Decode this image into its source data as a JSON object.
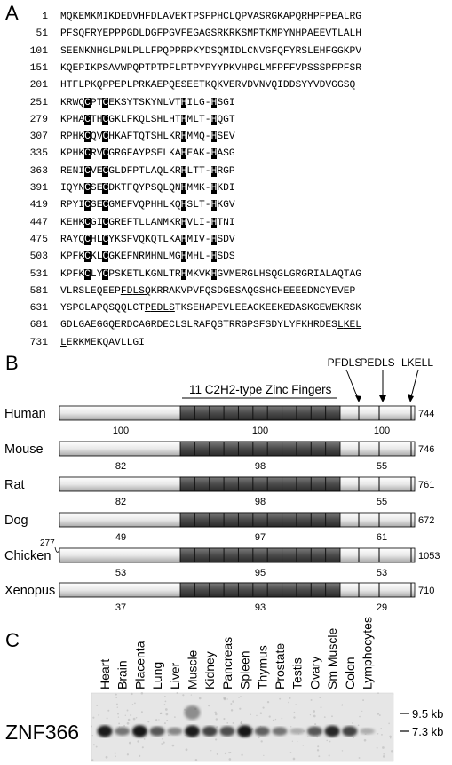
{
  "panel_a": {
    "label": "A",
    "lines": [
      {
        "num": "1",
        "seq": "MQKEMKMIKDEDVHFDLAVEKTPSFPHCLQPVASRGKAPQRHPFPEALRG"
      },
      {
        "num": "51",
        "seq": "PFSQFRYEPPPGDLDGFPGVFEGAGSRKRKSMPTKMPYNHPAEEVTLALH"
      },
      {
        "num": "101",
        "seq": "SEENKNHGLPNLPLLFPQPPRPKYDSQMIDLCNVGFQFYRSLEHFGGKPV"
      },
      {
        "num": "151",
        "seq": "KQEPIKPSAVWPQPTPTPFLPTPYPYYPKVHPGLMFPFFVPSSSPFPFSR"
      },
      {
        "num": "201",
        "seq": "HTFLPKQPPEPLPRKAEPQESEETKQKVERVDVNVQIDDSYYVDVGGSQ"
      },
      {
        "num": "251",
        "seq": "KRWQCPTCEKSYTSKYNLVTHILG-HSGI"
      },
      {
        "num": "279",
        "seq": "KPHACTHCGKLFKQLSHLHTHMLT-HQGT"
      },
      {
        "num": "307",
        "seq": "RPHKCQVCHKAFTQTSHLKRHMMQ-HSEV"
      },
      {
        "num": "335",
        "seq": "KPHKCRVCGRGFAYPSELKAHEAK-HASG"
      },
      {
        "num": "363",
        "seq": "RENICVECGLDFPTLAQLKRHLTT-HRGP"
      },
      {
        "num": "391",
        "seq": "IQYNCSECDKTFQYPSQLQNHMMK-HKDI"
      },
      {
        "num": "419",
        "seq": "RPYICSECGMEFVQPHHLKQHSLT-HKGV"
      },
      {
        "num": "447",
        "seq": "KEHKCGICGREFTLLANMKRHVLI-HTNI"
      },
      {
        "num": "475",
        "seq": "RAYQCHLCYKSFVQKQTLKAHMIV-HSDV"
      },
      {
        "num": "503",
        "seq": "KPFKCKLCGKEFNRMHNLMGHMHL-HSDS"
      },
      {
        "num": "531",
        "seq": "KPFKCLYCPSKETLKGNLTRHMKVKHGVMERGLHSQGLGRGRIALAQTAG"
      },
      {
        "num": "581",
        "seq": "VLRSLEQEEPFDLSQKRRAKVPVFQSDGESAQGSHCHEEEEDNCYEVEP"
      },
      {
        "num": "631",
        "seq": "YSPGLAPQSQQLCTPEDLSTKSEHAPEVLEEACKEEKEDASKGEWEKRSK"
      },
      {
        "num": "681",
        "seq": "GDLGAEGGQERDCAGRDECLSLRAFQSTRRGPSFSDYLYFKHRDESLKEL"
      },
      {
        "num": "731",
        "seq": "LERKMEKQAVLLGI"
      }
    ]
  },
  "panel_b": {
    "label": "B",
    "zinc_finger_label": "11 C2H2-type Zinc Fingers",
    "motif_labels": [
      "PFDLS",
      "PEDLS",
      "LKELL"
    ],
    "zinc_finger_count": 11,
    "species": [
      {
        "name": "Human",
        "length": "744",
        "pct_n": "100",
        "pct_zf": "100",
        "pct_c": "100"
      },
      {
        "name": "Mouse",
        "length": "746",
        "pct_n": "82",
        "pct_zf": "98",
        "pct_c": "55"
      },
      {
        "name": "Rat",
        "length": "761",
        "pct_n": "82",
        "pct_zf": "98",
        "pct_c": "55"
      },
      {
        "name": "Dog",
        "length": "672",
        "pct_n": "49",
        "pct_zf": "97",
        "pct_c": "61"
      },
      {
        "name": "Chicken",
        "length": "1053",
        "pct_n": "53",
        "pct_zf": "95",
        "pct_c": "53",
        "offset": "277"
      },
      {
        "name": "Xenopus",
        "length": "710",
        "pct_n": "37",
        "pct_zf": "93",
        "pct_c": "29"
      }
    ]
  },
  "panel_c": {
    "label": "C",
    "gene": "ZNF366",
    "tissues": [
      "Heart",
      "Brain",
      "Placenta",
      "Lung",
      "Liver",
      "Muscle",
      "Kidney",
      "Pancreas",
      "Spleen",
      "Thymus",
      "Prostate",
      "Testis",
      "Ovary",
      "Sm Muscle",
      "Colon",
      "Lymphocytes"
    ],
    "band_intensity": [
      0.9,
      0.45,
      0.95,
      0.6,
      0.35,
      0.9,
      0.7,
      0.65,
      0.95,
      0.55,
      0.45,
      0.15,
      0.6,
      0.85,
      0.7,
      0.15
    ],
    "size_markers": [
      "9.5 kb",
      "7.3 kb"
    ]
  }
}
